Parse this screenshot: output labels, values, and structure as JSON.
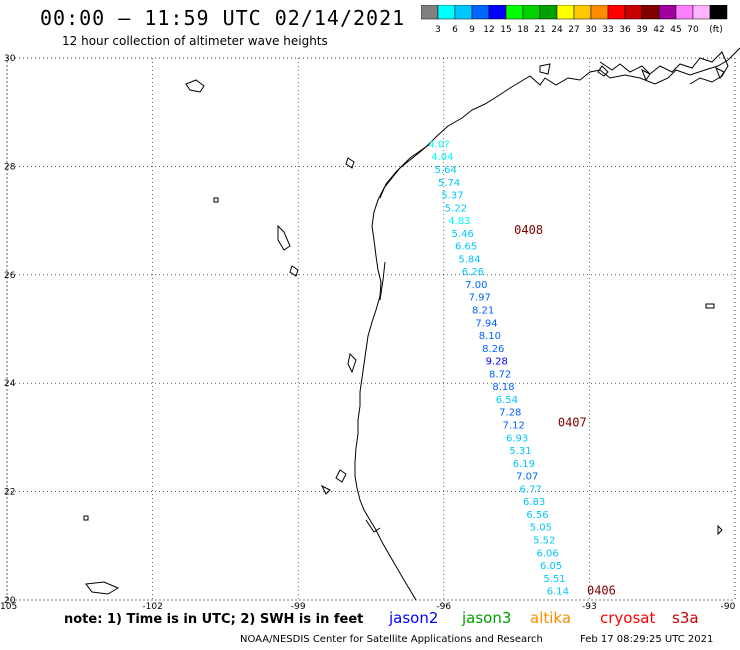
{
  "header": {
    "title": "00:00 – 11:59 UTC 02/14/2021",
    "subtitle": "12 hour collection of altimeter wave heights"
  },
  "colorbar": {
    "unit": "(ft)",
    "labels": [
      "3",
      "6",
      "9",
      "12",
      "15",
      "18",
      "21",
      "24",
      "27",
      "30",
      "33",
      "36",
      "39",
      "42",
      "45",
      "70"
    ],
    "colors": [
      "#808080",
      "#00ffff",
      "#00c8ff",
      "#0064ff",
      "#0000ff",
      "#00ff00",
      "#00d200",
      "#00a000",
      "#ffff00",
      "#ffc800",
      "#ff8c00",
      "#ff0000",
      "#c80000",
      "#800000",
      "#a000a0",
      "#ff80ff",
      "#ffb4ff",
      "#000000"
    ]
  },
  "map": {
    "lon_range": [
      -105,
      -90
    ],
    "lat_range": [
      20,
      30
    ],
    "lon_ticks": [
      "-105",
      "-102",
      "-99",
      "-96",
      "-93",
      "-90"
    ],
    "lat_ticks": [
      "30",
      "28",
      "26",
      "24",
      "22",
      "20"
    ]
  },
  "track": {
    "lon_start": -96.1,
    "lat_start": 28.35,
    "lon_end": -93.65,
    "lat_end": 20.1,
    "values": [
      {
        "v": "4.0?",
        "c": "#00ffff"
      },
      {
        "v": "4.04",
        "c": "#00ffff"
      },
      {
        "v": "5.64",
        "c": "#00c8ff"
      },
      {
        "v": "5.74",
        "c": "#00c8ff"
      },
      {
        "v": "5.37",
        "c": "#00c8ff"
      },
      {
        "v": "5.22",
        "c": "#00c8ff"
      },
      {
        "v": "4.83",
        "c": "#00ffff"
      },
      {
        "v": "5.46",
        "c": "#00c8ff"
      },
      {
        "v": "6.65",
        "c": "#00c8ff"
      },
      {
        "v": "5.84",
        "c": "#00c8ff"
      },
      {
        "v": "6.26",
        "c": "#00c8ff"
      },
      {
        "v": "7.00",
        "c": "#0064ff"
      },
      {
        "v": "7.97",
        "c": "#0064ff"
      },
      {
        "v": "8.21",
        "c": "#0064ff"
      },
      {
        "v": "7.94",
        "c": "#0064ff"
      },
      {
        "v": "8.10",
        "c": "#0064ff"
      },
      {
        "v": "8.26",
        "c": "#0064ff"
      },
      {
        "v": "9.28",
        "c": "#0000ff"
      },
      {
        "v": "8.72",
        "c": "#0064ff"
      },
      {
        "v": "8.18",
        "c": "#0064ff"
      },
      {
        "v": "6.54",
        "c": "#00c8ff"
      },
      {
        "v": "7.28",
        "c": "#0064ff"
      },
      {
        "v": "7.12",
        "c": "#0064ff"
      },
      {
        "v": "6.93",
        "c": "#00c8ff"
      },
      {
        "v": "5.31",
        "c": "#00c8ff"
      },
      {
        "v": "6.19",
        "c": "#00c8ff"
      },
      {
        "v": "7.07",
        "c": "#0064ff"
      },
      {
        "v": "6.77",
        "c": "#00c8ff"
      },
      {
        "v": "6.83",
        "c": "#00c8ff"
      },
      {
        "v": "6.56",
        "c": "#00c8ff"
      },
      {
        "v": "5.05",
        "c": "#00c8ff"
      },
      {
        "v": "5.52",
        "c": "#00c8ff"
      },
      {
        "v": "6.06",
        "c": "#00c8ff"
      },
      {
        "v": "6.05",
        "c": "#00c8ff"
      },
      {
        "v": "5.51",
        "c": "#00c8ff"
      },
      {
        "v": "6.14",
        "c": "#00c8ff"
      }
    ]
  },
  "pass_labels": [
    {
      "text": "0408",
      "lon": -94.55,
      "lat": 26.75,
      "color": "#800000"
    },
    {
      "text": "0407",
      "lon": -93.65,
      "lat": 23.2,
      "color": "#800000"
    },
    {
      "text": "0406",
      "lon": -93.05,
      "lat": 20.1,
      "color": "#800000"
    }
  ],
  "footer": {
    "note": "note: 1) Time is in UTC; 2) SWH is in feet",
    "satellites": [
      {
        "name": "jason2",
        "color": "#0000ff"
      },
      {
        "name": "jason3",
        "color": "#00a000"
      },
      {
        "name": "altika",
        "color": "#ff8c00"
      },
      {
        "name": "cryosat",
        "color": "#ff0000"
      },
      {
        "name": "s3a",
        "color": "#c80000"
      }
    ],
    "credit": "NOAA/NESDIS Center for Satellite Applications and Research",
    "timestamp": "Feb 17 08:29:25 UTC 2021"
  }
}
